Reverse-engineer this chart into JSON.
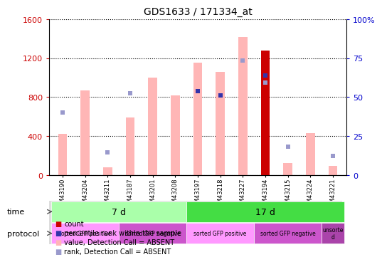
{
  "title": "GDS1633 / 171334_at",
  "samples": [
    "GSM43190",
    "GSM43204",
    "GSM43211",
    "GSM43187",
    "GSM43201",
    "GSM43208",
    "GSM43197",
    "GSM43218",
    "GSM43227",
    "GSM43194",
    "GSM43215",
    "GSM43224",
    "GSM43221"
  ],
  "bar_values_pink": [
    420,
    870,
    80,
    590,
    1000,
    820,
    1150,
    1060,
    1420,
    0,
    120,
    430,
    90
  ],
  "bar_values_dark_red": [
    0,
    0,
    0,
    0,
    0,
    0,
    0,
    0,
    0,
    1280,
    0,
    0,
    0
  ],
  "rank_dots_blue_light": [
    640,
    0,
    230,
    840,
    0,
    0,
    0,
    0,
    1175,
    950,
    290,
    0,
    195
  ],
  "rank_dots_blue_dark": [
    0,
    0,
    0,
    0,
    0,
    0,
    860,
    820,
    0,
    1020,
    0,
    0,
    0
  ],
  "ylim_left": [
    0,
    1600
  ],
  "ylim_right": [
    0,
    100
  ],
  "yticks_left": [
    0,
    400,
    800,
    1200,
    1600
  ],
  "yticks_right": [
    0,
    25,
    50,
    75,
    100
  ],
  "ytick_labels_left": [
    "0",
    "400",
    "800",
    "1200",
    "1600"
  ],
  "ytick_labels_right": [
    "0",
    "25",
    "50",
    "75",
    "100%"
  ],
  "time_groups": [
    {
      "label": "7 d",
      "start": 0,
      "end": 5,
      "color": "#AAFFAA"
    },
    {
      "label": "17 d",
      "start": 5,
      "end": 12,
      "color": "#44DD44"
    }
  ],
  "protocol_groups": [
    {
      "label": "sorted GFP positive",
      "start": 0,
      "end": 2,
      "color": "#FF99FF"
    },
    {
      "label": "sorted GFP negative",
      "start": 3,
      "end": 5,
      "color": "#DD66DD"
    },
    {
      "label": "sorted GFP positive",
      "start": 6,
      "end": 8,
      "color": "#FF99FF"
    },
    {
      "label": "sorted GFP negative",
      "start": 9,
      "end": 11,
      "color": "#DD66DD"
    },
    {
      "label": "unsorte\nd",
      "start": 12,
      "end": 12,
      "color": "#AA44AA"
    }
  ],
  "time_label": "time",
  "protocol_label": "protocol",
  "bar_width": 0.4,
  "pink_color": "#FFB6B6",
  "dark_red_color": "#CC0000",
  "blue_light_color": "#9999CC",
  "blue_dark_color": "#3333AA",
  "left_tick_color": "#CC0000",
  "right_tick_color": "#0000CC",
  "bg_color": "#FFFFFF",
  "legend_items": [
    {
      "label": "count",
      "color": "#CC0000"
    },
    {
      "label": "percentile rank within the sample",
      "color": "#3333AA"
    },
    {
      "label": "value, Detection Call = ABSENT",
      "color": "#FFB6B6"
    },
    {
      "label": "rank, Detection Call = ABSENT",
      "color": "#9999CC"
    }
  ]
}
